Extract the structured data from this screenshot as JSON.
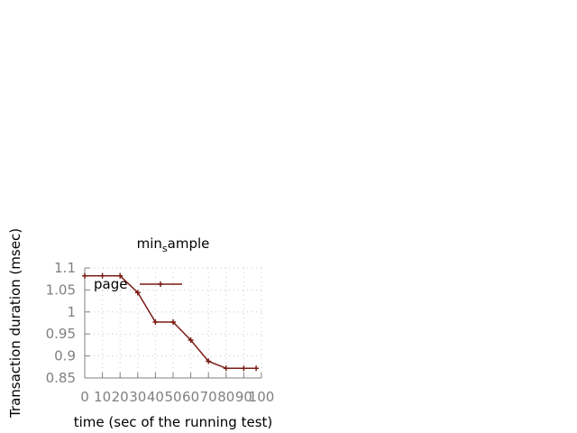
{
  "chart_data": {
    "type": "line",
    "title": "min_sample",
    "xlabel": "time (sec of the running test)",
    "ylabel": "Transaction duration (msec)",
    "xlim": [
      0,
      100
    ],
    "ylim": [
      0.85,
      1.1
    ],
    "xticks": [
      0,
      10,
      20,
      30,
      40,
      50,
      60,
      70,
      80,
      90,
      100
    ],
    "yticks": [
      0.85,
      0.9,
      0.95,
      1,
      1.05,
      1.1
    ],
    "xtick_labels": [
      "0",
      "10",
      "20",
      "30",
      "40",
      "50",
      "60",
      "70",
      "80",
      "90",
      "100"
    ],
    "ytick_labels": [
      "0.85",
      "0.9",
      "0.95",
      "1",
      "1.05",
      "1.1"
    ],
    "grid": true,
    "legend_position": "top-left",
    "series": [
      {
        "name": "page",
        "color": "#7b1c14",
        "x": [
          0,
          10,
          20,
          30,
          40,
          50,
          60,
          70,
          80,
          90,
          97
        ],
        "y": [
          1.082,
          1.082,
          1.082,
          1.044,
          0.977,
          0.977,
          0.936,
          0.888,
          0.872,
          0.872,
          0.872
        ]
      }
    ]
  }
}
